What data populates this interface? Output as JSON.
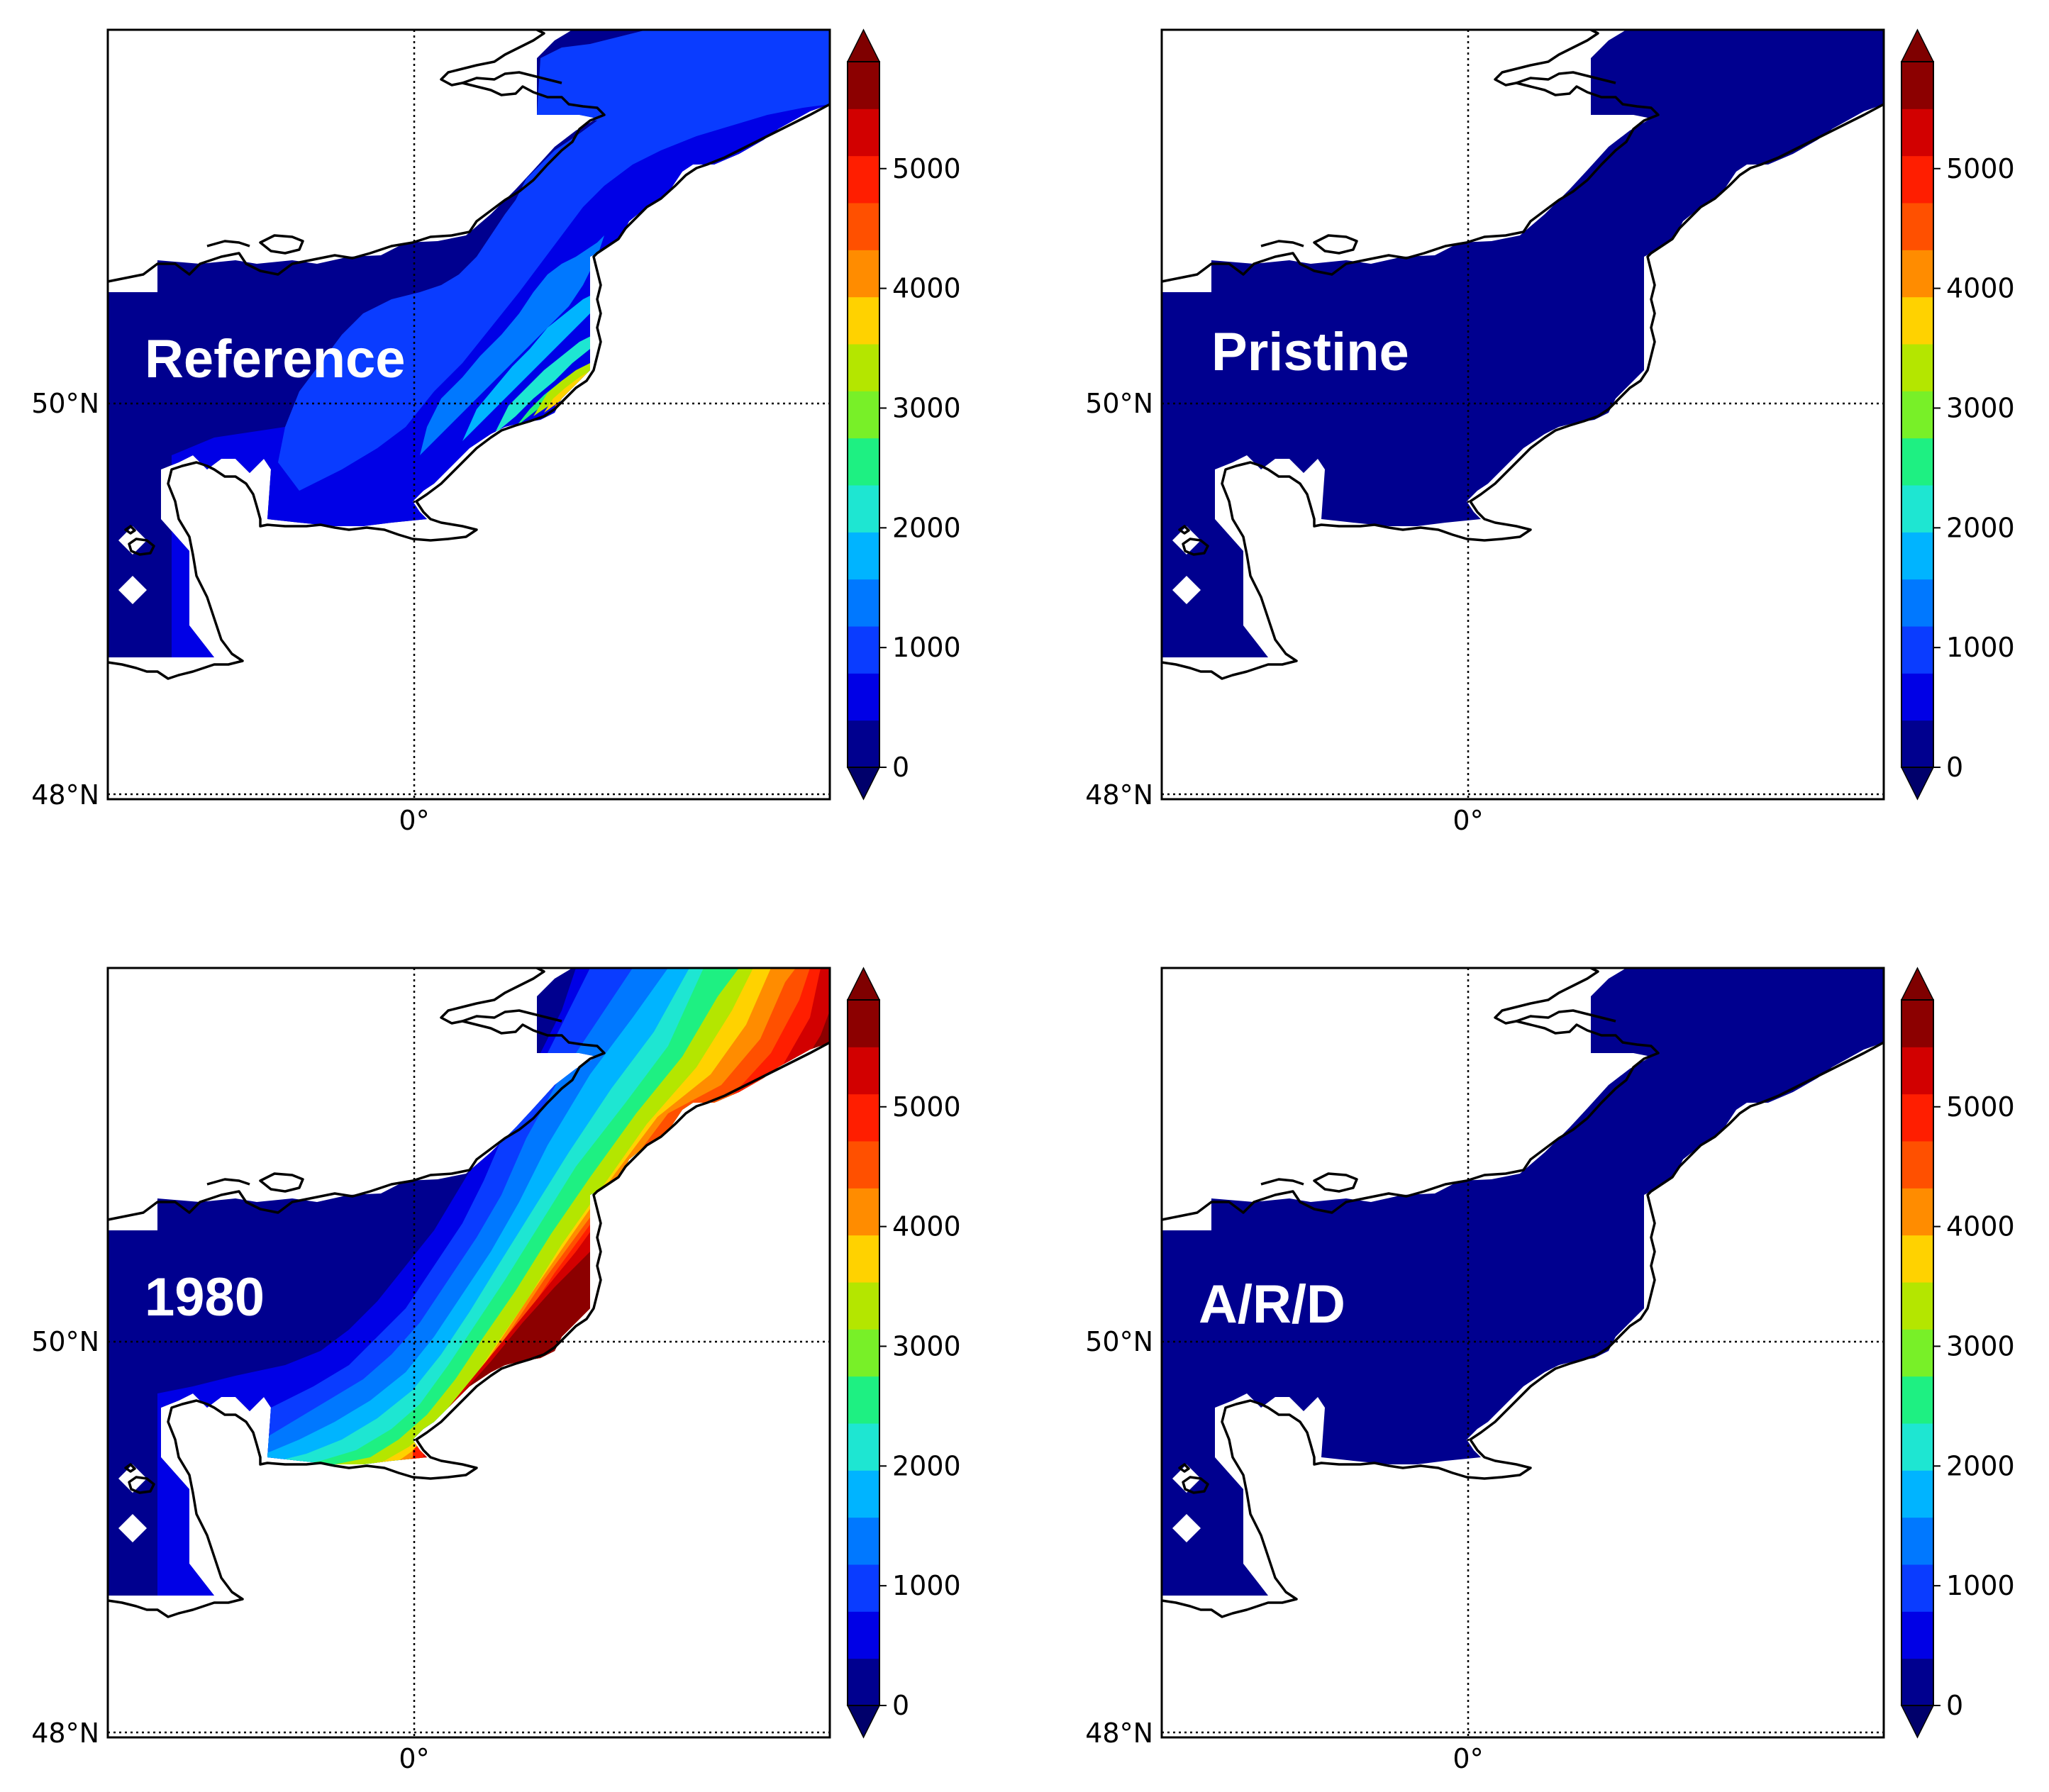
{
  "figure": {
    "lat_labels": [
      "50°N",
      "48°N"
    ],
    "lon_label": "0°",
    "colorbar_ticks": [
      "0",
      "1000",
      "2000",
      "3000",
      "4000",
      "5000"
    ],
    "colormap": "jet",
    "colorbar_colors": [
      "#00008f",
      "#0000e6",
      "#0a3cff",
      "#0078ff",
      "#00b4ff",
      "#1ee6d2",
      "#1ef082",
      "#78f028",
      "#b4e600",
      "#ffd200",
      "#ff8c00",
      "#ff5000",
      "#ff1e00",
      "#d20000",
      "#8c0000"
    ],
    "coast_color": "#000000",
    "land_color": "#ffffff"
  },
  "panels": [
    {
      "label": "Reference"
    },
    {
      "label": "Pristine"
    },
    {
      "label": "1980"
    },
    {
      "label": "A/R/D"
    }
  ]
}
